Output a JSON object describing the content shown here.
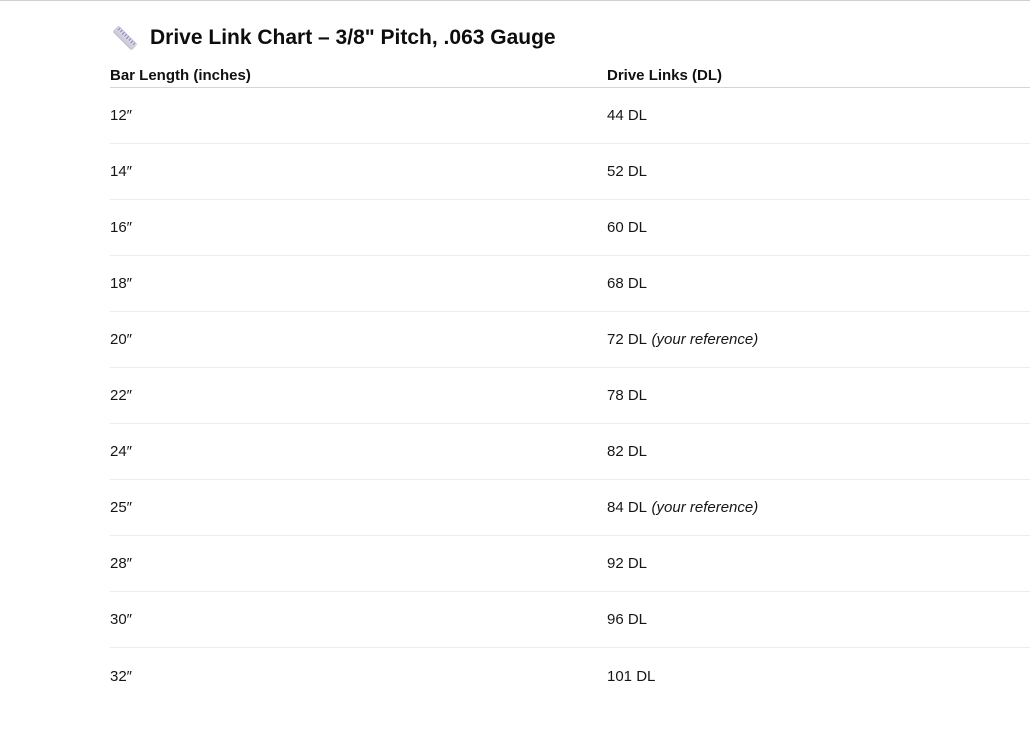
{
  "header": {
    "icon": "ruler-icon",
    "title": "Drive Link Chart – 3/8\" Pitch, .063 Gauge"
  },
  "table": {
    "columns": [
      "Bar Length (inches)",
      "Drive Links (DL)"
    ],
    "rows": [
      {
        "bar_length": "12″",
        "drive_links": "44 DL",
        "note": ""
      },
      {
        "bar_length": "14″",
        "drive_links": "52 DL",
        "note": ""
      },
      {
        "bar_length": "16″",
        "drive_links": "60 DL",
        "note": ""
      },
      {
        "bar_length": "18″",
        "drive_links": "68 DL",
        "note": ""
      },
      {
        "bar_length": "20″",
        "drive_links": "72 DL",
        "note": "(your reference)"
      },
      {
        "bar_length": "22″",
        "drive_links": "78 DL",
        "note": ""
      },
      {
        "bar_length": "24″",
        "drive_links": "82 DL",
        "note": ""
      },
      {
        "bar_length": "25″",
        "drive_links": "84 DL",
        "note": "(your reference)"
      },
      {
        "bar_length": "28″",
        "drive_links": "92 DL",
        "note": ""
      },
      {
        "bar_length": "30″",
        "drive_links": "96 DL",
        "note": ""
      },
      {
        "bar_length": "32″",
        "drive_links": "101 DL",
        "note": ""
      }
    ]
  },
  "chart_data": {
    "type": "table",
    "title": "Drive Link Chart – 3/8\" Pitch, .063 Gauge",
    "columns": [
      "Bar Length (inches)",
      "Drive Links (DL)"
    ],
    "bar_length_inches": [
      12,
      14,
      16,
      18,
      20,
      22,
      24,
      25,
      28,
      30,
      32
    ],
    "drive_links": [
      44,
      52,
      60,
      68,
      72,
      78,
      82,
      84,
      92,
      96,
      101
    ],
    "annotations": [
      {
        "row": "20″",
        "text": "(your reference)"
      },
      {
        "row": "25″",
        "text": "(your reference)"
      }
    ]
  },
  "colors": {
    "top_rule": "#d0d0d0",
    "header_border": "#d5d5d5",
    "row_border": "#ededed",
    "text": "#161616",
    "ruler_body": "#d7d5dc",
    "ruler_ticks": "#8b7bd8"
  }
}
